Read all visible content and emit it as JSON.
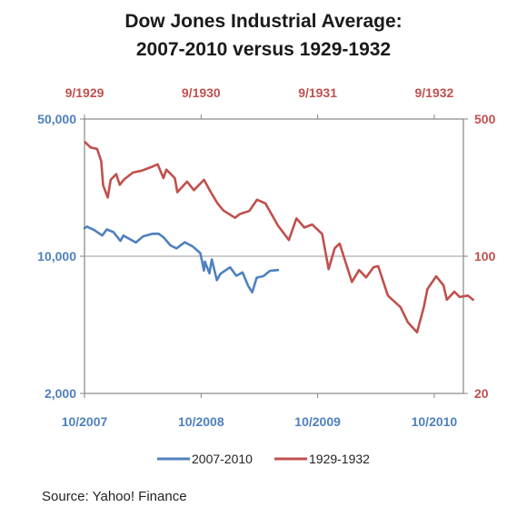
{
  "title_line1": "Dow Jones Industrial Average:",
  "title_line2": "2007-2010 versus 1929-1932",
  "source": "Source: Yahoo! Finance",
  "colors": {
    "modern": "#4f81bd",
    "historic": "#c0504d",
    "frame": "#868686",
    "gridline": "#9b9b9b"
  },
  "chart_data": {
    "type": "line",
    "title": "Dow Jones Industrial Average: 2007-2010 versus 1929-1932",
    "scale": "log",
    "grid": "horizontal at 10,000 / 100",
    "legend_position": "bottom",
    "left_axis": {
      "ticks": [
        "50,000",
        "10,000",
        "2,000"
      ],
      "tick_values": [
        50000,
        10000,
        2000
      ],
      "range": [
        2000,
        50000
      ]
    },
    "right_axis": {
      "ticks": [
        "500",
        "100",
        "20"
      ],
      "tick_values": [
        500,
        100,
        20
      ],
      "range": [
        20,
        500
      ]
    },
    "bottom_axis": {
      "ticks": [
        "10/2007",
        "10/2008",
        "10/2009",
        "10/2010"
      ],
      "range": [
        "2007-10",
        "2011-01"
      ]
    },
    "top_axis": {
      "ticks": [
        "9/1929",
        "9/1930",
        "9/1931",
        "9/1932"
      ],
      "range": [
        "1929-09",
        "1932-12"
      ]
    },
    "series": [
      {
        "name": "2007-2010",
        "axis": "left",
        "points": [
          [
            "2007-10-01",
            13900
          ],
          [
            "2007-10-09",
            14160
          ],
          [
            "2007-11-01",
            13600
          ],
          [
            "2007-11-26",
            12750
          ],
          [
            "2007-12-10",
            13700
          ],
          [
            "2007-12-31",
            13260
          ],
          [
            "2008-01-22",
            11970
          ],
          [
            "2008-02-01",
            12740
          ],
          [
            "2008-03-10",
            11740
          ],
          [
            "2008-04-01",
            12600
          ],
          [
            "2008-05-01",
            13010
          ],
          [
            "2008-05-20",
            13020
          ],
          [
            "2008-06-05",
            12500
          ],
          [
            "2008-06-27",
            11350
          ],
          [
            "2008-07-15",
            10960
          ],
          [
            "2008-08-11",
            11780
          ],
          [
            "2008-09-05",
            11220
          ],
          [
            "2008-09-29",
            10370
          ],
          [
            "2008-10-10",
            8450
          ],
          [
            "2008-10-13",
            9390
          ],
          [
            "2008-10-27",
            8180
          ],
          [
            "2008-11-04",
            9630
          ],
          [
            "2008-11-20",
            7550
          ],
          [
            "2008-12-01",
            8150
          ],
          [
            "2008-12-31",
            8780
          ],
          [
            "2009-01-20",
            7950
          ],
          [
            "2009-02-09",
            8270
          ],
          [
            "2009-02-27",
            7060
          ],
          [
            "2009-03-09",
            6550
          ],
          [
            "2009-03-23",
            7780
          ],
          [
            "2009-04-14",
            7920
          ],
          [
            "2009-05-04",
            8430
          ],
          [
            "2009-05-29",
            8500
          ]
        ]
      },
      {
        "name": "1929-1932",
        "axis": "right",
        "points": [
          [
            "1929-09-03",
            381
          ],
          [
            "1929-09-20",
            358
          ],
          [
            "1929-10-10",
            352
          ],
          [
            "1929-10-23",
            305
          ],
          [
            "1929-10-29",
            230
          ],
          [
            "1929-11-13",
            199
          ],
          [
            "1929-11-22",
            245
          ],
          [
            "1929-12-09",
            262
          ],
          [
            "1929-12-20",
            231
          ],
          [
            "1930-01-02",
            245
          ],
          [
            "1930-01-31",
            267
          ],
          [
            "1930-02-28",
            273
          ],
          [
            "1930-03-31",
            286
          ],
          [
            "1930-04-17",
            294
          ],
          [
            "1930-05-05",
            250
          ],
          [
            "1930-05-14",
            276
          ],
          [
            "1930-06-10",
            250
          ],
          [
            "1930-06-18",
            212
          ],
          [
            "1930-07-18",
            240
          ],
          [
            "1930-08-09",
            217
          ],
          [
            "1930-09-10",
            245
          ],
          [
            "1930-10-01",
            212
          ],
          [
            "1930-10-22",
            186
          ],
          [
            "1930-11-10",
            171
          ],
          [
            "1930-12-16",
            157
          ],
          [
            "1930-12-31",
            164
          ],
          [
            "1931-01-30",
            170
          ],
          [
            "1931-02-24",
            194
          ],
          [
            "1931-03-20",
            186
          ],
          [
            "1931-04-29",
            143
          ],
          [
            "1931-06-02",
            121
          ],
          [
            "1931-06-26",
            156
          ],
          [
            "1931-07-20",
            140
          ],
          [
            "1931-08-14",
            145
          ],
          [
            "1931-09-15",
            130
          ],
          [
            "1931-10-05",
            86
          ],
          [
            "1931-10-24",
            110
          ],
          [
            "1931-11-09",
            116
          ],
          [
            "1931-12-17",
            74
          ],
          [
            "1932-01-09",
            85
          ],
          [
            "1932-01-31",
            78
          ],
          [
            "1932-02-24",
            88
          ],
          [
            "1932-03-08",
            89
          ],
          [
            "1932-04-08",
            63
          ],
          [
            "1932-05-17",
            55
          ],
          [
            "1932-06-10",
            46
          ],
          [
            "1932-07-08",
            41
          ],
          [
            "1932-07-29",
            55
          ],
          [
            "1932-08-10",
            68
          ],
          [
            "1932-09-07",
            79
          ],
          [
            "1932-09-30",
            71
          ],
          [
            "1932-10-10",
            60
          ],
          [
            "1932-11-03",
            66
          ],
          [
            "1932-11-20",
            62
          ],
          [
            "1932-12-15",
            63
          ],
          [
            "1932-12-31",
            60
          ]
        ]
      }
    ]
  }
}
